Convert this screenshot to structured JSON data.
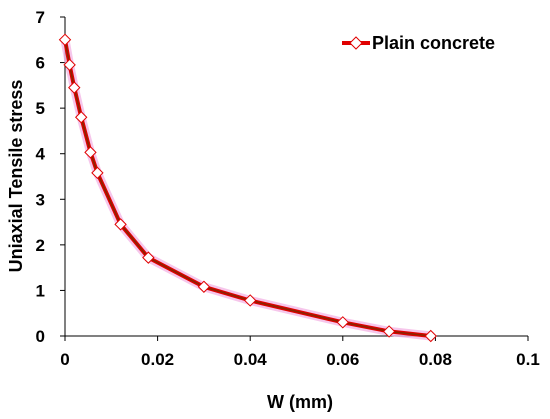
{
  "chart_data": {
    "type": "line",
    "title": "",
    "xlabel": "W (mm)",
    "ylabel": "Uniaxial Tensile stress",
    "xlim": [
      0,
      0.1
    ],
    "ylim": [
      0,
      7
    ],
    "x_ticks": [
      0,
      0.02,
      0.04,
      0.06,
      0.08,
      0.1
    ],
    "x_tick_labels": [
      "0",
      "0.02",
      "0.04",
      "0.06",
      "0.08",
      "0.1"
    ],
    "y_ticks": [
      0,
      1,
      2,
      3,
      4,
      5,
      6,
      7
    ],
    "y_tick_labels": [
      "0",
      "1",
      "2",
      "3",
      "4",
      "5",
      "6",
      "7"
    ],
    "grid": false,
    "legend_position": "top-right",
    "series": [
      {
        "name": "Plain concrete",
        "line_color": "#e00000",
        "marker": "diamond",
        "marker_fill": "#ffffff",
        "marker_stroke": "#e00000",
        "x": [
          0,
          0.001,
          0.002,
          0.0035,
          0.0055,
          0.007,
          0.012,
          0.018,
          0.03,
          0.04,
          0.06,
          0.07,
          0.079
        ],
        "y": [
          6.5,
          5.95,
          5.45,
          4.8,
          4.03,
          3.58,
          2.45,
          1.72,
          1.08,
          0.78,
          0.3,
          0.1,
          0.0
        ]
      }
    ]
  }
}
